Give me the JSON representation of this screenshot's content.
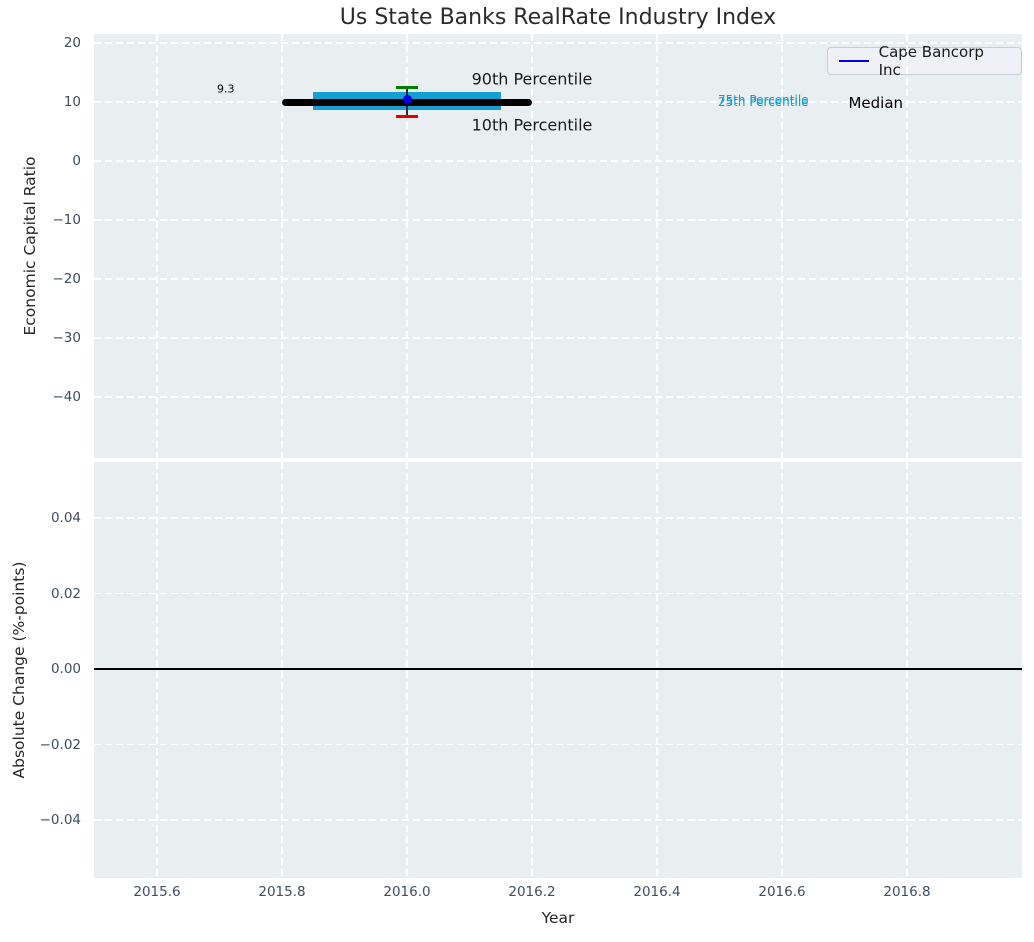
{
  "title": "Us State Banks RealRate Industry Index",
  "colors": {
    "plot_background": "#e9eef0",
    "grid": "#ffffff",
    "tick_label": "#3d4e63",
    "axis_label": "#262626",
    "company_line": "#0000ee",
    "median_line": "#000000",
    "percentile_band": "#149fd4",
    "p90_cap": "#008000",
    "p10_cap": "#e60000"
  },
  "x_axis": {
    "label": "Year",
    "tick_labels": [
      "2015.6",
      "2015.8",
      "2016.0",
      "2016.2",
      "2016.4",
      "2016.6",
      "2016.8"
    ],
    "tick_values": [
      2015.6,
      2015.8,
      2016.0,
      2016.2,
      2016.4,
      2016.6,
      2016.8
    ]
  },
  "legend": {
    "entries": [
      {
        "label": "Cape Bancorp Inc",
        "color": "#0000ee"
      }
    ]
  },
  "chart_data": [
    {
      "type": "line",
      "title": "Us State Banks RealRate Industry Index",
      "ylabel": "Economic Capital Ratio",
      "xlabel": "",
      "ylim": [
        -50.3,
        21.5
      ],
      "xlim": [
        2015.5,
        2016.99
      ],
      "ytick_values": [
        20,
        10,
        0,
        -10,
        -20,
        -30,
        -40
      ],
      "ytick_labels": [
        "20",
        "10",
        "0",
        "−10",
        "−20",
        "−30",
        "−40"
      ],
      "grid": "white-dashed",
      "legend_position": "upper-right",
      "legend": [
        "Cape Bancorp Inc"
      ],
      "series": [
        {
          "name": "Cape Bancorp Inc",
          "type": "point",
          "color": "#0000ee",
          "x": [
            2016.0
          ],
          "y": [
            10.4
          ]
        },
        {
          "name": "Median",
          "type": "line",
          "color": "#000000",
          "linewidth": 7.5,
          "x": [
            2015.8,
            2016.2
          ],
          "y": [
            9.9,
            9.9
          ]
        },
        {
          "name": "25th-75th Percentile",
          "type": "band",
          "color": "#149fd4",
          "x": [
            2015.85,
            2016.15
          ],
          "y_low": 8.7,
          "y_high": 11.7
        },
        {
          "name": "90th Percentile",
          "type": "cap",
          "color": "#008000",
          "x": 2016.0,
          "y": 12.5,
          "cap_width_years": 0.034
        },
        {
          "name": "10th Percentile",
          "type": "cap",
          "color": "#e60000",
          "x": 2016.0,
          "y": 7.6,
          "cap_width_years": 0.034
        }
      ],
      "annotations": [
        {
          "text": "9.3",
          "x": 2015.71,
          "y": 12.2,
          "color": "#000000",
          "fontsize": 11
        },
        {
          "text": "90th Percentile",
          "x": 2016.2,
          "y": 13.9,
          "color": "#1a1a1a",
          "fontsize": 16
        },
        {
          "text": "10th Percentile",
          "x": 2016.2,
          "y": 6.1,
          "color": "#1a1a1a",
          "fontsize": 16
        },
        {
          "text": "75th Percentile",
          "x": 2016.57,
          "y": 10.3,
          "color": "#149fd4",
          "fontsize": 12
        },
        {
          "text": "25th Percentile",
          "x": 2016.57,
          "y": 10.0,
          "color": "#149fd4",
          "fontsize": 12
        },
        {
          "text": "Median",
          "x": 2016.75,
          "y": 9.8,
          "color": "#000000",
          "fontsize": 15
        }
      ]
    },
    {
      "type": "line",
      "ylabel": "Absolute Change (%-points)",
      "xlabel": "Year",
      "ylim": [
        -0.0552,
        0.0552
      ],
      "xlim": [
        2015.5,
        2016.99
      ],
      "ytick_values": [
        0.04,
        0.02,
        0,
        -0.02,
        -0.04
      ],
      "ytick_labels": [
        "0.04",
        "0.02",
        "0.00",
        "−0.02",
        "−0.04"
      ],
      "xtick_labels": [
        "2015.6",
        "2015.8",
        "2016.0",
        "2016.2",
        "2016.4",
        "2016.6",
        "2016.8"
      ],
      "grid": "white-dashed",
      "series": [
        {
          "name": "zero-line",
          "type": "hline",
          "color": "#000000",
          "y": 0,
          "linewidth": 1.8
        }
      ],
      "annotations": []
    }
  ]
}
